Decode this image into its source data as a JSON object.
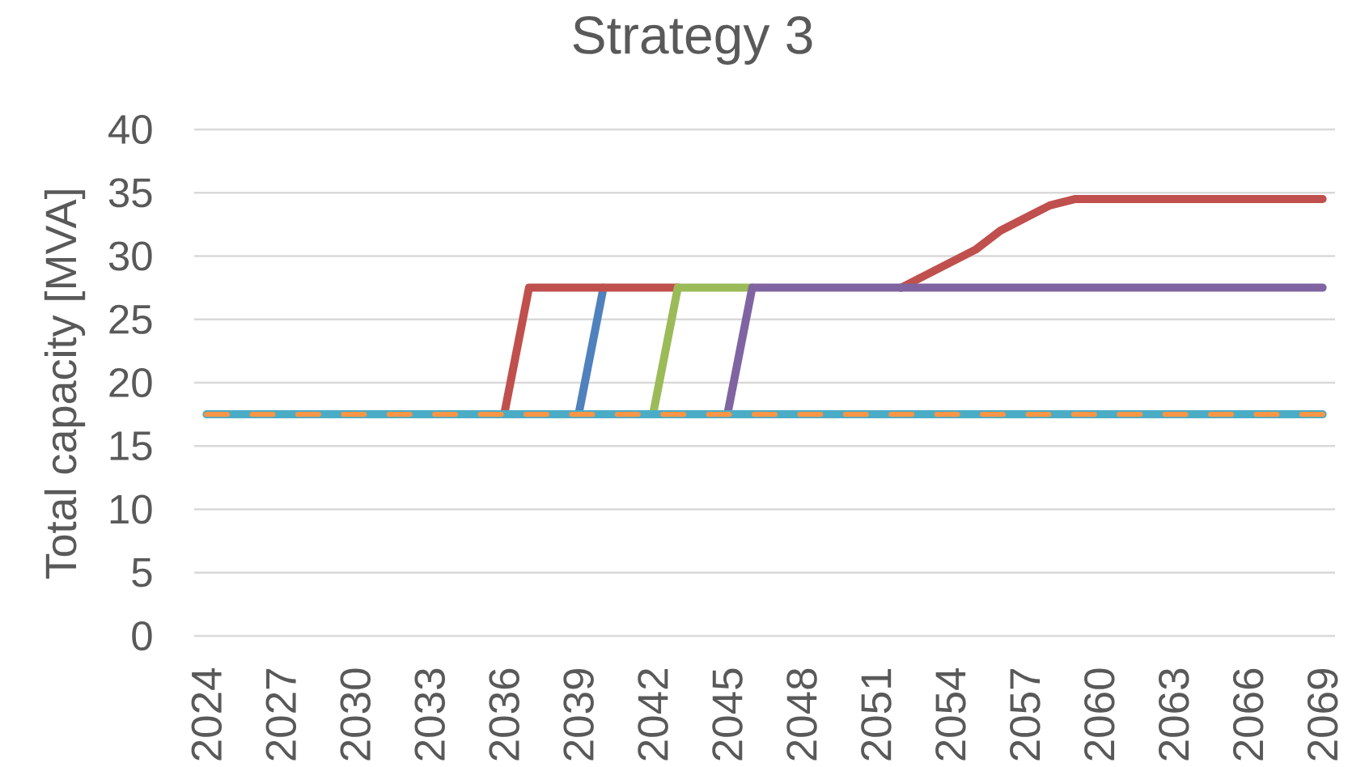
{
  "chart_data": {
    "type": "line",
    "title": "Strategy 3",
    "ylabel": "Total capacity [MVA]",
    "categories": [
      "2024",
      null,
      null,
      "2027",
      null,
      null,
      "2030",
      null,
      null,
      "2033",
      null,
      null,
      "2036",
      null,
      null,
      "2039",
      null,
      null,
      "2042",
      null,
      null,
      "2045",
      null,
      null,
      "2048",
      null,
      null,
      "2051",
      null,
      null,
      "2054",
      null,
      null,
      "2057",
      null,
      null,
      "2060",
      null,
      null,
      "2063",
      null,
      null,
      "2066",
      null,
      null,
      "2069"
    ],
    "ylim": [
      0,
      40
    ],
    "yticks": [
      0,
      5,
      10,
      15,
      20,
      25,
      30,
      35,
      40
    ],
    "grid": "y",
    "series": [
      {
        "color": "#4f81bd",
        "values": [
          null,
          null,
          null,
          null,
          null,
          null,
          null,
          null,
          null,
          null,
          null,
          null,
          null,
          null,
          null,
          17.5,
          27.5,
          null,
          null,
          null,
          null,
          null,
          null,
          null,
          null,
          null,
          null,
          null,
          null,
          null,
          null,
          null,
          null,
          null,
          null,
          null,
          null,
          null,
          null,
          null,
          null,
          null,
          null,
          null,
          null,
          null
        ]
      },
      {
        "color": "#c0504d",
        "values": [
          null,
          null,
          null,
          null,
          null,
          null,
          null,
          null,
          null,
          null,
          null,
          null,
          17.5,
          27.5,
          27.5,
          27.5,
          27.5,
          27.5,
          27.5,
          27.5,
          null,
          null,
          null,
          null,
          null,
          null,
          null,
          null,
          27.5,
          28.5,
          29.5,
          30.5,
          32,
          33,
          34,
          34.5,
          34.5,
          34.5,
          34.5,
          34.5,
          34.5,
          34.5,
          34.5,
          34.5,
          34.5,
          34.5
        ]
      },
      {
        "color": "#9bbb59",
        "values": [
          null,
          null,
          null,
          null,
          null,
          null,
          null,
          null,
          null,
          null,
          null,
          null,
          null,
          null,
          null,
          null,
          null,
          null,
          17.5,
          27.5,
          27.5,
          27.5,
          27.5,
          null,
          null,
          null,
          null,
          null,
          null,
          null,
          null,
          null,
          null,
          null,
          null,
          null,
          null,
          null,
          null,
          null,
          null,
          null,
          null,
          null,
          null,
          null
        ]
      },
      {
        "color": "#8064a2",
        "values": [
          null,
          null,
          null,
          null,
          null,
          null,
          null,
          null,
          null,
          null,
          null,
          null,
          null,
          null,
          null,
          null,
          null,
          null,
          null,
          null,
          null,
          17.5,
          27.5,
          27.5,
          27.5,
          27.5,
          27.5,
          27.5,
          27.5,
          27.5,
          27.5,
          27.5,
          27.5,
          27.5,
          27.5,
          27.5,
          27.5,
          27.5,
          27.5,
          27.5,
          27.5,
          27.5,
          27.5,
          27.5,
          27.5,
          27.5
        ]
      },
      {
        "color": "#4bacc6",
        "values": [
          17.5,
          17.5,
          17.5,
          17.5,
          17.5,
          17.5,
          17.5,
          17.5,
          17.5,
          17.5,
          17.5,
          17.5,
          17.5,
          17.5,
          17.5,
          17.5,
          17.5,
          17.5,
          17.5,
          17.5,
          17.5,
          17.5,
          17.5,
          17.5,
          17.5,
          17.5,
          17.5,
          17.5,
          17.5,
          17.5,
          17.5,
          17.5,
          17.5,
          17.5,
          17.5,
          17.5,
          17.5,
          17.5,
          17.5,
          17.5,
          17.5,
          17.5,
          17.5,
          17.5,
          17.5,
          17.5
        ]
      },
      {
        "color": "#f79646",
        "line_style": "dashed",
        "values": [
          17.5,
          17.5,
          17.5,
          17.5,
          17.5,
          17.5,
          17.5,
          17.5,
          17.5,
          17.5,
          17.5,
          17.5,
          17.5,
          17.5,
          17.5,
          17.5,
          17.5,
          17.5,
          17.5,
          17.5,
          17.5,
          17.5,
          17.5,
          17.5,
          17.5,
          17.5,
          17.5,
          17.5,
          17.5,
          17.5,
          17.5,
          17.5,
          17.5,
          17.5,
          17.5,
          17.5,
          17.5,
          17.5,
          17.5,
          17.5,
          17.5,
          17.5,
          17.5,
          17.5,
          17.5,
          17.5
        ]
      }
    ]
  }
}
